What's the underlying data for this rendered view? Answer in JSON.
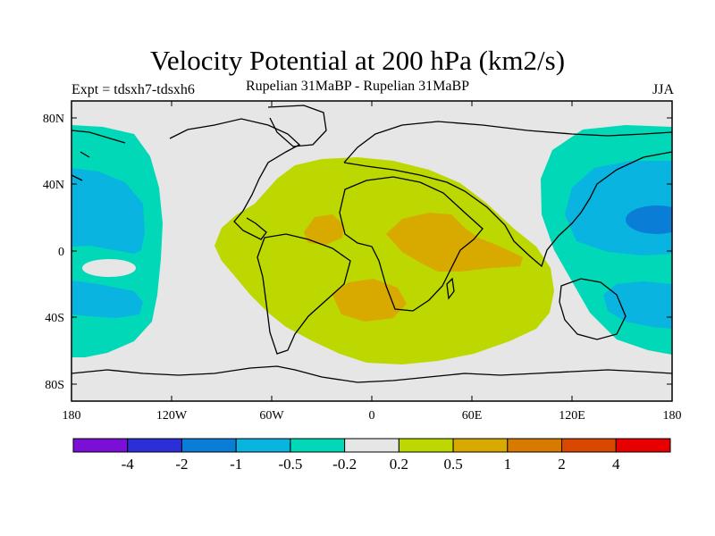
{
  "title": "Velocity Potential at 200 hPa (km2/s)",
  "subtitle": "Rupelian  31MaBP - Rupelian  31MaBP",
  "left_label": "Expt = tdsxh7-tdsxh6",
  "right_label": "JJA",
  "map": {
    "projection": "cylindrical equidistant",
    "lon_range": [
      -180,
      180
    ],
    "lat_range": [
      -90,
      90
    ],
    "background_color": "#e6e6e6",
    "lat_ticks": [
      "80N",
      "40N",
      "0",
      "40S",
      "80S"
    ],
    "lon_ticks": [
      "180",
      "120W",
      "60W",
      "0",
      "60E",
      "120E",
      "180"
    ]
  },
  "colorbar": {
    "colors": [
      "#7b0fd6",
      "#2a2fd8",
      "#0a7ed6",
      "#0ab4e0",
      "#00d8b8",
      "#e6e6e6",
      "#bcd800",
      "#d8aa00",
      "#d87a00",
      "#d84800",
      "#e80000"
    ],
    "labels": [
      "-4",
      "-2",
      "-1",
      "-0.5",
      "-0.2",
      "0.2",
      "0.5",
      "1",
      "2",
      "4"
    ]
  },
  "fields": [
    {
      "name": "positive-0.2-0.5",
      "color": "#bcd800"
    },
    {
      "name": "positive-0.5-1",
      "color": "#d8aa00"
    },
    {
      "name": "negative-0.2-0.5",
      "color": "#00d8b8"
    },
    {
      "name": "negative-0.5-1",
      "color": "#0ab4e0"
    },
    {
      "name": "negative-1-2",
      "color": "#0a7ed6"
    }
  ]
}
